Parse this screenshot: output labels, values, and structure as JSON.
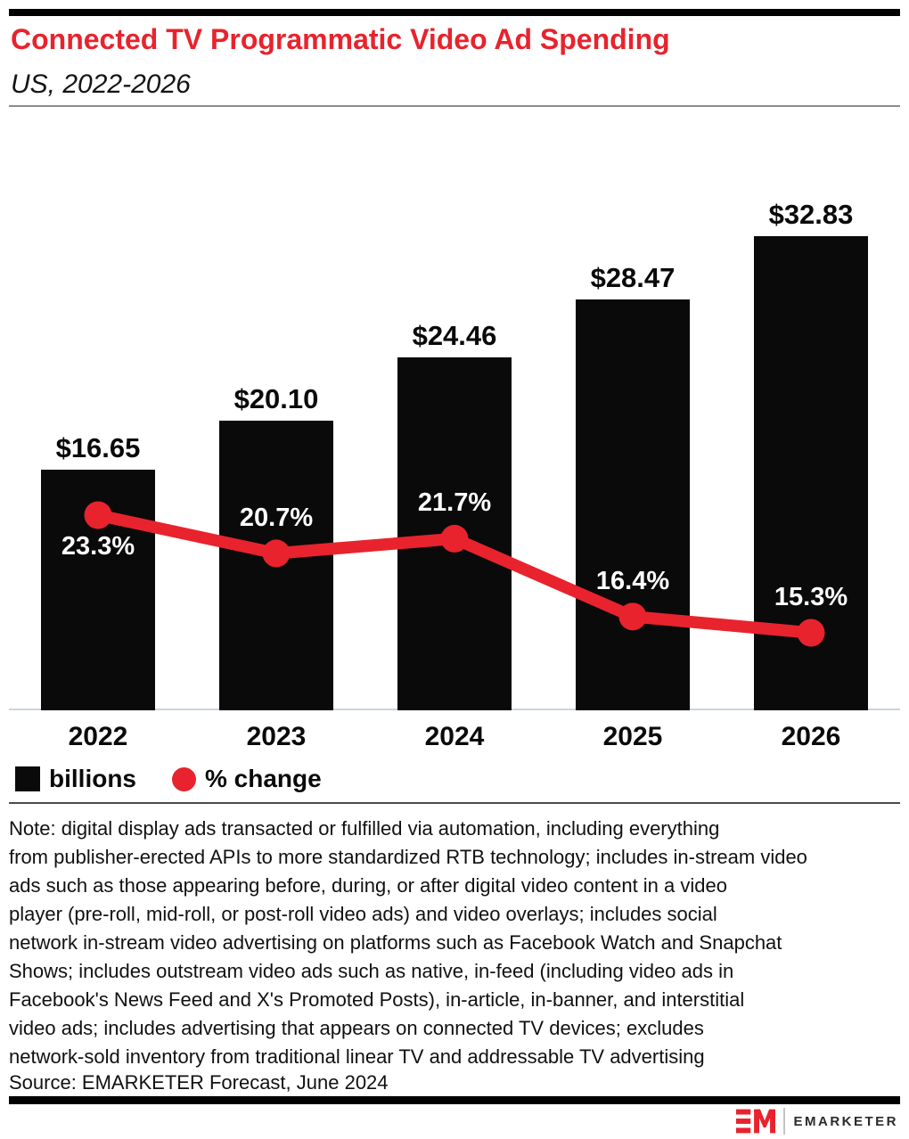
{
  "chart_data": {
    "type": "combo",
    "title": "Connected TV Programmatic Video Ad Spending",
    "subtitle": "US, 2022-2026",
    "categories": [
      "2022",
      "2023",
      "2024",
      "2025",
      "2026"
    ],
    "series": [
      {
        "name": "billions",
        "type": "bar",
        "color": "#0a0a0a",
        "values": [
          16.65,
          20.1,
          24.46,
          28.47,
          32.83
        ],
        "labels": [
          "$16.65",
          "$20.10",
          "$24.46",
          "$28.47",
          "$32.83"
        ]
      },
      {
        "name": "% change",
        "type": "line",
        "color": "#e8232d",
        "values": [
          23.3,
          20.7,
          21.7,
          16.4,
          15.3
        ],
        "labels": [
          "23.3%",
          "20.7%",
          "21.7%",
          "16.4%",
          "15.3%"
        ]
      }
    ],
    "legend_position": "bottom-left",
    "grid": false,
    "y_axis_visible": false,
    "value_labels_position": "above bars (bar series), inside bars near points (line series)"
  },
  "note": {
    "lines": [
      "Note: digital display ads transacted or fulfilled via automation, including everything",
      "from publisher-erected APIs to more standardized RTB technology; includes in-stream video",
      "ads such as those appearing before, during, or after digital video content in a video",
      "player (pre-roll, mid-roll, or post-roll video ads) and video overlays; includes social",
      "network in-stream video advertising on platforms such as Facebook Watch and Snapchat",
      "Shows; includes outstream video ads such as native, in-feed (including video ads in",
      "Facebook's News Feed and X's Promoted Posts), in-article, in-banner, and interstitial",
      "video ads; includes advertising that appears on connected TV devices; excludes",
      "network-sold inventory from traditional linear TV and addressable TV advertising"
    ]
  },
  "source": "Source: EMARKETER Forecast, June 2024",
  "footer": {
    "brand": "EMARKETER"
  },
  "colors": {
    "accent_red": "#e8232d",
    "bar_black": "#0a0a0a",
    "baseline_gray": "#ccd4e0",
    "header_rule_gray": "#8c8c8c",
    "note_rule_gray": "#4b4b4b"
  }
}
